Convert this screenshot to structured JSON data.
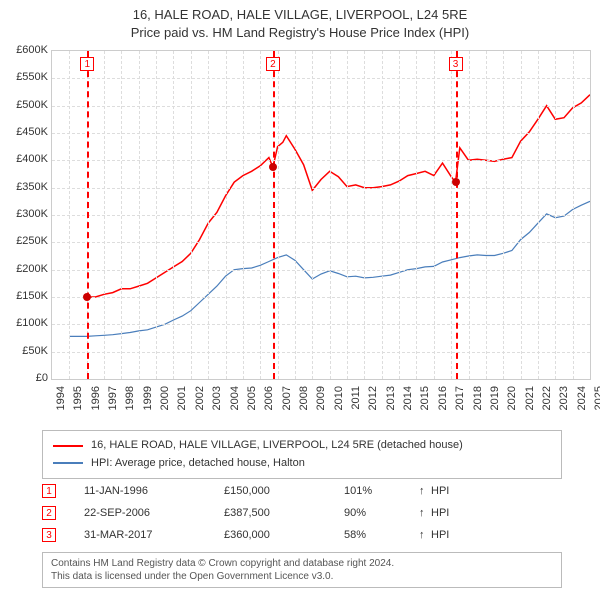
{
  "title": {
    "line1": "16, HALE ROAD, HALE VILLAGE, LIVERPOOL, L24 5RE",
    "line2": "Price paid vs. HM Land Registry's House Price Index (HPI)",
    "fontsize": 13,
    "color": "#333333"
  },
  "chart": {
    "type": "line",
    "background_color": "#ffffff",
    "grid_color": "#dddddd",
    "border_color": "#cccccc",
    "x": {
      "min": 1994,
      "max": 2025,
      "tick_step": 1,
      "labels": [
        "1994",
        "1995",
        "1996",
        "1997",
        "1998",
        "1999",
        "2000",
        "2001",
        "2002",
        "2003",
        "2004",
        "2005",
        "2006",
        "2007",
        "2008",
        "2009",
        "2010",
        "2011",
        "2012",
        "2013",
        "2014",
        "2015",
        "2016",
        "2017",
        "2018",
        "2019",
        "2020",
        "2021",
        "2022",
        "2023",
        "2024",
        "2025"
      ],
      "label_fontsize": 11,
      "label_rotation": -90
    },
    "y": {
      "min": 0,
      "max": 600000,
      "tick_step": 50000,
      "labels": [
        "£0",
        "£50K",
        "£100K",
        "£150K",
        "£200K",
        "£250K",
        "£300K",
        "£350K",
        "£400K",
        "£450K",
        "£500K",
        "£550K",
        "£600K"
      ],
      "label_fontsize": 11
    },
    "series": [
      {
        "name": "16, HALE ROAD, HALE VILLAGE, LIVERPOOL, L24 5RE (detached house)",
        "color": "#ff0000",
        "line_width": 1.5,
        "xy": [
          [
            1996.03,
            150000
          ],
          [
            1996.5,
            150000
          ],
          [
            1997,
            155000
          ],
          [
            1997.5,
            158000
          ],
          [
            1998,
            165000
          ],
          [
            1998.5,
            165000
          ],
          [
            1999,
            170000
          ],
          [
            1999.5,
            175000
          ],
          [
            2000,
            185000
          ],
          [
            2000.5,
            195000
          ],
          [
            2001,
            205000
          ],
          [
            2001.5,
            215000
          ],
          [
            2002,
            230000
          ],
          [
            2002.5,
            255000
          ],
          [
            2003,
            285000
          ],
          [
            2003.5,
            305000
          ],
          [
            2004,
            335000
          ],
          [
            2004.5,
            360000
          ],
          [
            2005,
            372000
          ],
          [
            2005.5,
            380000
          ],
          [
            2006,
            390000
          ],
          [
            2006.5,
            405000
          ],
          [
            2006.73,
            387500
          ],
          [
            2007,
            425000
          ],
          [
            2007.3,
            433000
          ],
          [
            2007.5,
            445000
          ],
          [
            2008,
            420000
          ],
          [
            2008.5,
            392000
          ],
          [
            2009,
            345000
          ],
          [
            2009.5,
            365000
          ],
          [
            2010,
            380000
          ],
          [
            2010.5,
            370000
          ],
          [
            2011,
            352000
          ],
          [
            2011.5,
            355000
          ],
          [
            2012,
            350000
          ],
          [
            2012.5,
            350000
          ],
          [
            2013,
            352000
          ],
          [
            2013.5,
            355000
          ],
          [
            2014,
            362000
          ],
          [
            2014.5,
            372000
          ],
          [
            2015,
            376000
          ],
          [
            2015.5,
            380000
          ],
          [
            2016,
            372000
          ],
          [
            2016.5,
            395000
          ],
          [
            2017,
            370000
          ],
          [
            2017.25,
            360000
          ],
          [
            2017.5,
            423000
          ],
          [
            2018,
            400000
          ],
          [
            2018.5,
            402000
          ],
          [
            2019,
            400000
          ],
          [
            2019.5,
            398000
          ],
          [
            2020,
            402000
          ],
          [
            2020.5,
            405000
          ],
          [
            2021,
            435000
          ],
          [
            2021.5,
            452000
          ],
          [
            2022,
            475000
          ],
          [
            2022.5,
            500000
          ],
          [
            2023,
            475000
          ],
          [
            2023.5,
            478000
          ],
          [
            2024,
            496000
          ],
          [
            2024.5,
            505000
          ],
          [
            2025,
            520000
          ]
        ]
      },
      {
        "name": "HPI: Average price, detached house, Halton",
        "color": "#4a7ebb",
        "line_width": 1.2,
        "xy": [
          [
            1995,
            78000
          ],
          [
            1995.5,
            78000
          ],
          [
            1996,
            78000
          ],
          [
            1996.5,
            79000
          ],
          [
            1997,
            80000
          ],
          [
            1997.5,
            81000
          ],
          [
            1998,
            83000
          ],
          [
            1998.5,
            85000
          ],
          [
            1999,
            88000
          ],
          [
            1999.5,
            90000
          ],
          [
            2000,
            95000
          ],
          [
            2000.5,
            100000
          ],
          [
            2001,
            108000
          ],
          [
            2001.5,
            115000
          ],
          [
            2002,
            125000
          ],
          [
            2002.5,
            140000
          ],
          [
            2003,
            155000
          ],
          [
            2003.5,
            170000
          ],
          [
            2004,
            188000
          ],
          [
            2004.5,
            200000
          ],
          [
            2005,
            202000
          ],
          [
            2005.5,
            203000
          ],
          [
            2006,
            208000
          ],
          [
            2006.5,
            215000
          ],
          [
            2007,
            222000
          ],
          [
            2007.5,
            227000
          ],
          [
            2008,
            217000
          ],
          [
            2008.5,
            200000
          ],
          [
            2009,
            183000
          ],
          [
            2009.5,
            192000
          ],
          [
            2010,
            198000
          ],
          [
            2010.5,
            193000
          ],
          [
            2011,
            187000
          ],
          [
            2011.5,
            188000
          ],
          [
            2012,
            185000
          ],
          [
            2012.5,
            186000
          ],
          [
            2013,
            188000
          ],
          [
            2013.5,
            190000
          ],
          [
            2014,
            195000
          ],
          [
            2014.5,
            200000
          ],
          [
            2015,
            202000
          ],
          [
            2015.5,
            205000
          ],
          [
            2016,
            206000
          ],
          [
            2016.5,
            214000
          ],
          [
            2017,
            218000
          ],
          [
            2017.5,
            222000
          ],
          [
            2018,
            225000
          ],
          [
            2018.5,
            227000
          ],
          [
            2019,
            226000
          ],
          [
            2019.5,
            226000
          ],
          [
            2020,
            230000
          ],
          [
            2020.5,
            235000
          ],
          [
            2021,
            255000
          ],
          [
            2021.5,
            268000
          ],
          [
            2022,
            285000
          ],
          [
            2022.5,
            302000
          ],
          [
            2023,
            295000
          ],
          [
            2023.5,
            298000
          ],
          [
            2024,
            310000
          ],
          [
            2024.5,
            318000
          ],
          [
            2025,
            325000
          ]
        ]
      }
    ],
    "events": [
      {
        "n": "1",
        "date": "11-JAN-1996",
        "x": 1996.03,
        "price_label": "£150,000",
        "price": 150000,
        "pct": "101%",
        "arrow": "↑",
        "hpi_label": "HPI",
        "vline_color": "#ff0000"
      },
      {
        "n": "2",
        "date": "22-SEP-2006",
        "x": 2006.73,
        "price_label": "£387,500",
        "price": 387500,
        "pct": "90%",
        "arrow": "↑",
        "hpi_label": "HPI",
        "vline_color": "#ff0000"
      },
      {
        "n": "3",
        "date": "31-MAR-2017",
        "x": 2017.25,
        "price_label": "£360,000",
        "price": 360000,
        "pct": "58%",
        "arrow": "↑",
        "hpi_label": "HPI",
        "vline_color": "#ff0000"
      }
    ],
    "event_dot_color": "#cc0000",
    "event_marker_border": "#ff0000"
  },
  "legend": {
    "border_color": "#bbbbbb",
    "fontsize": 11
  },
  "attribution": {
    "line1": "Contains HM Land Registry data © Crown copyright and database right 2024.",
    "line2": "This data is licensed under the Open Government Licence v3.0.",
    "border_color": "#bbbbbb",
    "color": "#555555",
    "fontsize": 10
  }
}
